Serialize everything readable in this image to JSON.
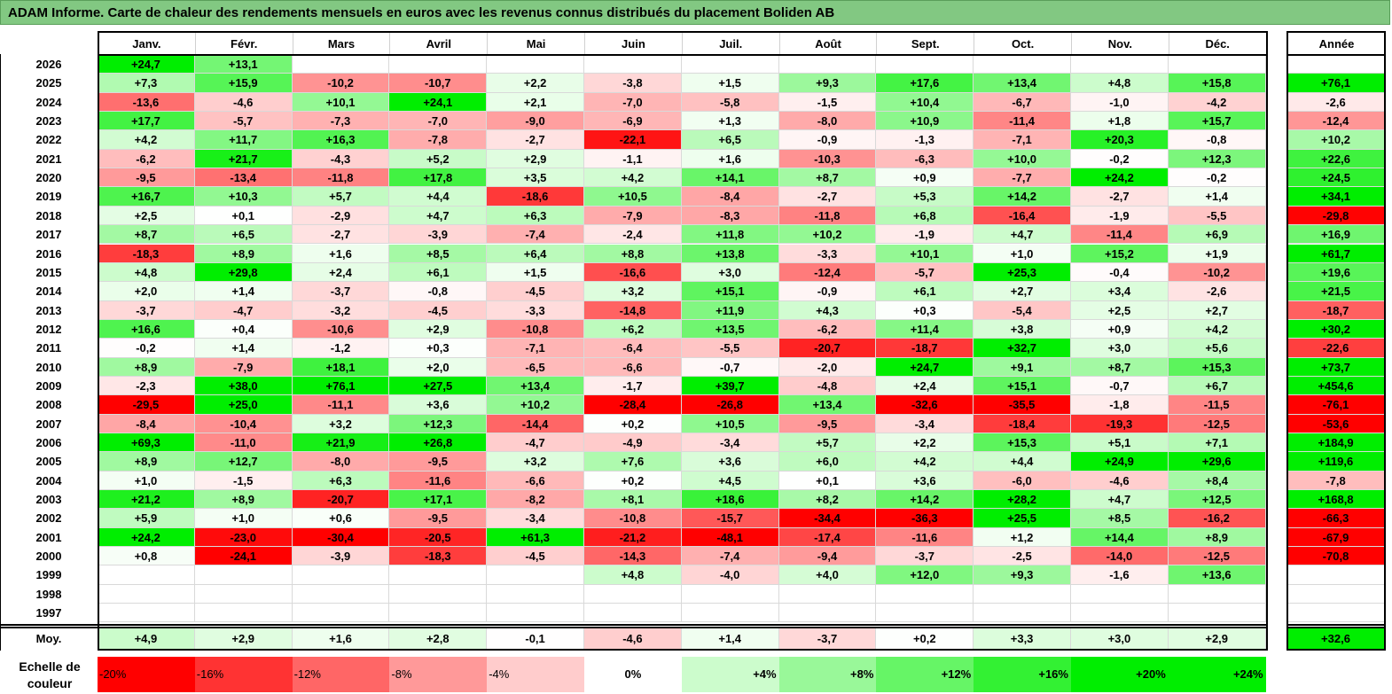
{
  "title": "ADAM Informe. Carte de chaleur des rendements mensuels en euros avec les revenus connus distribués du placement Boliden AB",
  "months": [
    "Janv.",
    "Févr.",
    "Mars",
    "Avril",
    "Mai",
    "Juin",
    "Juil.",
    "Août",
    "Sept.",
    "Oct.",
    "Nov.",
    "Déc."
  ],
  "year_header": "Année",
  "avg_label": "Moy.",
  "scale_label_1": "Echelle de",
  "scale_label_2": "couleur",
  "colors": {
    "negative": "#ff0000",
    "neutral": "#ffffff",
    "positive": "#00ee00",
    "title_bg": "#82c882"
  },
  "chart_data": {
    "type": "heatmap",
    "title": "ADAM Informe. Carte de chaleur des rendements mensuels en euros avec les revenus connus distribués du placement Boliden AB",
    "rows": [
      {
        "year": "2026",
        "months": [
          "+24,7",
          "+13,1",
          "",
          "",
          "",
          "",
          "",
          "",
          "",
          "",
          "",
          ""
        ],
        "annual": ""
      },
      {
        "year": "2025",
        "months": [
          "+7,3",
          "+15,9",
          "-10,2",
          "-10,7",
          "+2,2",
          "-3,8",
          "+1,5",
          "+9,3",
          "+17,6",
          "+13,4",
          "+4,8",
          "+15,8"
        ],
        "annual": "+76,1"
      },
      {
        "year": "2024",
        "months": [
          "-13,6",
          "-4,6",
          "+10,1",
          "+24,1",
          "+2,1",
          "-7,0",
          "-5,8",
          "-1,5",
          "+10,4",
          "-6,7",
          "-1,0",
          "-4,2"
        ],
        "annual": "-2,6"
      },
      {
        "year": "2023",
        "months": [
          "+17,7",
          "-5,7",
          "-7,3",
          "-7,0",
          "-9,0",
          "-6,9",
          "+1,3",
          "-8,0",
          "+10,9",
          "-11,4",
          "+1,8",
          "+15,7"
        ],
        "annual": "-12,4"
      },
      {
        "year": "2022",
        "months": [
          "+4,2",
          "+11,7",
          "+16,3",
          "-7,8",
          "-2,7",
          "-22,1",
          "+6,5",
          "-0,9",
          "-1,3",
          "-7,1",
          "+20,3",
          "-0,8"
        ],
        "annual": "+10,2"
      },
      {
        "year": "2021",
        "months": [
          "-6,2",
          "+21,7",
          "-4,3",
          "+5,2",
          "+2,9",
          "-1,1",
          "+1,6",
          "-10,3",
          "-6,3",
          "+10,0",
          "-0,2",
          "+12,3"
        ],
        "annual": "+22,6"
      },
      {
        "year": "2020",
        "months": [
          "-9,5",
          "-13,4",
          "-11,8",
          "+17,8",
          "+3,5",
          "+4,2",
          "+14,1",
          "+8,7",
          "+0,9",
          "-7,7",
          "+24,2",
          "-0,2"
        ],
        "annual": "+24,5"
      },
      {
        "year": "2019",
        "months": [
          "+16,7",
          "+10,3",
          "+5,7",
          "+4,4",
          "-18,6",
          "+10,5",
          "-8,4",
          "-2,7",
          "+5,3",
          "+14,2",
          "-2,7",
          "+1,4"
        ],
        "annual": "+34,1"
      },
      {
        "year": "2018",
        "months": [
          "+2,5",
          "+0,1",
          "-2,9",
          "+4,7",
          "+6,3",
          "-7,9",
          "-8,3",
          "-11,8",
          "+6,8",
          "-16,4",
          "-1,9",
          "-5,5"
        ],
        "annual": "-29,8"
      },
      {
        "year": "2017",
        "months": [
          "+8,7",
          "+6,5",
          "-2,7",
          "-3,9",
          "-7,4",
          "-2,4",
          "+11,8",
          "+10,2",
          "-1,9",
          "+4,7",
          "-11,4",
          "+6,9"
        ],
        "annual": "+16,9"
      },
      {
        "year": "2016",
        "months": [
          "-18,3",
          "+8,9",
          "+1,6",
          "+8,5",
          "+6,4",
          "+8,8",
          "+13,8",
          "-3,3",
          "+10,1",
          "+1,0",
          "+15,2",
          "+1,9"
        ],
        "annual": "+61,7"
      },
      {
        "year": "2015",
        "months": [
          "+4,8",
          "+29,8",
          "+2,4",
          "+6,1",
          "+1,5",
          "-16,6",
          "+3,0",
          "-12,4",
          "-5,7",
          "+25,3",
          "-0,4",
          "-10,2"
        ],
        "annual": "+19,6"
      },
      {
        "year": "2014",
        "months": [
          "+2,0",
          "+1,4",
          "-3,7",
          "-0,8",
          "-4,5",
          "+3,2",
          "+15,1",
          "-0,9",
          "+6,1",
          "+2,7",
          "+3,4",
          "-2,6"
        ],
        "annual": "+21,5"
      },
      {
        "year": "2013",
        "months": [
          "-3,7",
          "-4,7",
          "-3,2",
          "-4,5",
          "-3,3",
          "-14,8",
          "+11,9",
          "+4,3",
          "+0,3",
          "-5,4",
          "+2,5",
          "+2,7"
        ],
        "annual": "-18,7"
      },
      {
        "year": "2012",
        "months": [
          "+16,6",
          "+0,4",
          "-10,6",
          "+2,9",
          "-10,8",
          "+6,2",
          "+13,5",
          "-6,2",
          "+11,4",
          "+3,8",
          "+0,9",
          "+4,2"
        ],
        "annual": "+30,2"
      },
      {
        "year": "2011",
        "months": [
          "-0,2",
          "+1,4",
          "-1,2",
          "+0,3",
          "-7,1",
          "-6,4",
          "-5,5",
          "-20,7",
          "-18,7",
          "+32,7",
          "+3,0",
          "+5,6"
        ],
        "annual": "-22,6"
      },
      {
        "year": "2010",
        "months": [
          "+8,9",
          "-7,9",
          "+18,1",
          "+2,0",
          "-6,5",
          "-6,6",
          "-0,7",
          "-2,0",
          "+24,7",
          "+9,1",
          "+8,7",
          "+15,3"
        ],
        "annual": "+73,7"
      },
      {
        "year": "2009",
        "months": [
          "-2,3",
          "+38,0",
          "+76,1",
          "+27,5",
          "+13,4",
          "-1,7",
          "+39,7",
          "-4,8",
          "+2,4",
          "+15,1",
          "-0,7",
          "+6,7"
        ],
        "annual": "+454,6"
      },
      {
        "year": "2008",
        "months": [
          "-29,5",
          "+25,0",
          "-11,1",
          "+3,6",
          "+10,2",
          "-28,4",
          "-26,8",
          "+13,4",
          "-32,6",
          "-35,5",
          "-1,8",
          "-11,5"
        ],
        "annual": "-76,1"
      },
      {
        "year": "2007",
        "months": [
          "-8,4",
          "-10,4",
          "+3,2",
          "+12,3",
          "-14,4",
          "+0,2",
          "+10,5",
          "-9,5",
          "-3,4",
          "-18,4",
          "-19,3",
          "-12,5"
        ],
        "annual": "-53,6"
      },
      {
        "year": "2006",
        "months": [
          "+69,3",
          "-11,0",
          "+21,9",
          "+26,8",
          "-4,7",
          "-4,9",
          "-3,4",
          "+5,7",
          "+2,2",
          "+15,3",
          "+5,1",
          "+7,1"
        ],
        "annual": "+184,9"
      },
      {
        "year": "2005",
        "months": [
          "+8,9",
          "+12,7",
          "-8,0",
          "-9,5",
          "+3,2",
          "+7,6",
          "+3,6",
          "+6,0",
          "+4,2",
          "+4,4",
          "+24,9",
          "+29,6"
        ],
        "annual": "+119,6"
      },
      {
        "year": "2004",
        "months": [
          "+1,0",
          "-1,5",
          "+6,3",
          "-11,6",
          "-6,6",
          "+0,2",
          "+4,5",
          "+0,1",
          "+3,6",
          "-6,0",
          "-4,6",
          "+8,4"
        ],
        "annual": "-7,8"
      },
      {
        "year": "2003",
        "months": [
          "+21,2",
          "+8,9",
          "-20,7",
          "+17,1",
          "-8,2",
          "+8,1",
          "+18,6",
          "+8,2",
          "+14,2",
          "+28,2",
          "+4,7",
          "+12,5"
        ],
        "annual": "+168,8"
      },
      {
        "year": "2002",
        "months": [
          "+5,9",
          "+1,0",
          "+0,6",
          "-9,5",
          "-3,4",
          "-10,8",
          "-15,7",
          "-34,4",
          "-36,3",
          "+25,5",
          "+8,5",
          "-16,2"
        ],
        "annual": "-66,3"
      },
      {
        "year": "2001",
        "months": [
          "+24,2",
          "-23,0",
          "-30,4",
          "-20,5",
          "+61,3",
          "-21,2",
          "-48,1",
          "-17,4",
          "-11,6",
          "+1,2",
          "+14,4",
          "+8,9"
        ],
        "annual": "-67,9"
      },
      {
        "year": "2000",
        "months": [
          "+0,8",
          "-24,1",
          "-3,9",
          "-18,3",
          "-4,5",
          "-14,3",
          "-7,4",
          "-9,4",
          "-3,7",
          "-2,5",
          "-14,0",
          "-12,5"
        ],
        "annual": "-70,8"
      },
      {
        "year": "1999",
        "months": [
          "",
          "",
          "",
          "",
          "",
          "+4,8",
          "-4,0",
          "+4,0",
          "+12,0",
          "+9,3",
          "-1,6",
          "+13,6"
        ],
        "annual": ""
      },
      {
        "year": "1998",
        "months": [
          "",
          "",
          "",
          "",
          "",
          "",
          "",
          "",
          "",
          "",
          "",
          ""
        ],
        "annual": ""
      },
      {
        "year": "1997",
        "months": [
          "",
          "",
          "",
          "",
          "",
          "",
          "",
          "",
          "",
          "",
          "",
          ""
        ],
        "annual": ""
      }
    ],
    "average": {
      "months": [
        "+4,9",
        "+2,9",
        "+1,6",
        "+2,8",
        "-0,1",
        "-4,6",
        "+1,4",
        "-3,7",
        "+0,2",
        "+3,3",
        "+3,0",
        "+2,9"
      ],
      "annual": "+32,6"
    },
    "scale": [
      {
        "label": "-20%",
        "value": -20
      },
      {
        "label": "-16%",
        "value": -16
      },
      {
        "label": "-12%",
        "value": -12
      },
      {
        "label": "-8%",
        "value": -8
      },
      {
        "label": "-4%",
        "value": -4
      },
      {
        "label": "0%",
        "value": 0
      },
      {
        "label": "+4%",
        "value": 4
      },
      {
        "label": "+8%",
        "value": 8
      },
      {
        "label": "+12%",
        "value": 12
      },
      {
        "label": "+16%",
        "value": 16
      },
      {
        "label": "+20%",
        "value": 20
      },
      {
        "label": "+24%",
        "value": 24
      }
    ]
  }
}
